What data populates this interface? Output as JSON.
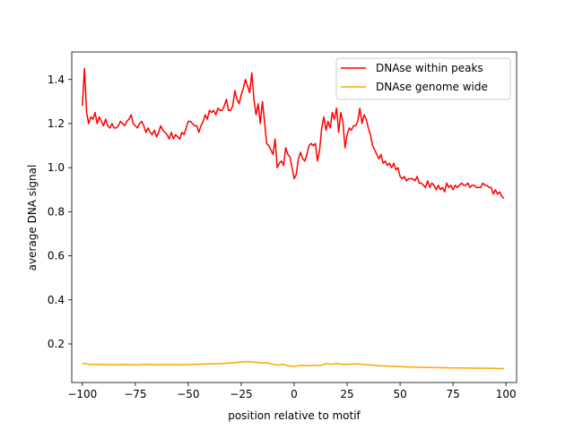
{
  "chart_data": {
    "type": "line",
    "title": "",
    "xlabel": "position relative to motif",
    "ylabel": "average DNA signal",
    "xlim": [
      -105,
      105
    ],
    "ylim": [
      0.025,
      1.525
    ],
    "xticks": [
      -100,
      -75,
      -50,
      -25,
      0,
      25,
      50,
      75,
      100
    ],
    "yticks": [
      0.2,
      0.4,
      0.6,
      0.8,
      1.0,
      1.2,
      1.4
    ],
    "xtick_labels": [
      "−100",
      "−75",
      "−50",
      "−25",
      "0",
      "25",
      "50",
      "75",
      "100"
    ],
    "ytick_labels": [
      "0.2",
      "0.4",
      "0.6",
      "0.8",
      "1.0",
      "1.2",
      "1.4"
    ],
    "grid": false,
    "legend_position": "top-right",
    "series": [
      {
        "name": "DNAse within peaks",
        "color": "#ff0000",
        "points": [
          [
            -100,
            1.28
          ],
          [
            -99,
            1.45
          ],
          [
            -98,
            1.25
          ],
          [
            -97,
            1.2
          ],
          [
            -96,
            1.23
          ],
          [
            -95,
            1.22
          ],
          [
            -94,
            1.25
          ],
          [
            -93,
            1.2
          ],
          [
            -92,
            1.23
          ],
          [
            -91,
            1.21
          ],
          [
            -90,
            1.19
          ],
          [
            -89,
            1.22
          ],
          [
            -88,
            1.19
          ],
          [
            -87,
            1.18
          ],
          [
            -86,
            1.2
          ],
          [
            -85,
            1.18
          ],
          [
            -84,
            1.18
          ],
          [
            -83,
            1.19
          ],
          [
            -82,
            1.21
          ],
          [
            -81,
            1.2
          ],
          [
            -80,
            1.19
          ],
          [
            -79,
            1.21
          ],
          [
            -78,
            1.22
          ],
          [
            -77,
            1.24
          ],
          [
            -76,
            1.2
          ],
          [
            -75,
            1.19
          ],
          [
            -74,
            1.18
          ],
          [
            -73,
            1.2
          ],
          [
            -72,
            1.21
          ],
          [
            -71,
            1.19
          ],
          [
            -70,
            1.16
          ],
          [
            -69,
            1.18
          ],
          [
            -68,
            1.16
          ],
          [
            -67,
            1.15
          ],
          [
            -66,
            1.17
          ],
          [
            -65,
            1.14
          ],
          [
            -64,
            1.16
          ],
          [
            -63,
            1.19
          ],
          [
            -62,
            1.17
          ],
          [
            -61,
            1.16
          ],
          [
            -60,
            1.15
          ],
          [
            -59,
            1.13
          ],
          [
            -58,
            1.16
          ],
          [
            -57,
            1.13
          ],
          [
            -56,
            1.15
          ],
          [
            -55,
            1.14
          ],
          [
            -54,
            1.13
          ],
          [
            -53,
            1.16
          ],
          [
            -52,
            1.15
          ],
          [
            -51,
            1.18
          ],
          [
            -50,
            1.21
          ],
          [
            -49,
            1.21
          ],
          [
            -48,
            1.2
          ],
          [
            -47,
            1.19
          ],
          [
            -46,
            1.19
          ],
          [
            -45,
            1.16
          ],
          [
            -44,
            1.19
          ],
          [
            -43,
            1.21
          ],
          [
            -42,
            1.24
          ],
          [
            -41,
            1.22
          ],
          [
            -40,
            1.26
          ],
          [
            -39,
            1.25
          ],
          [
            -38,
            1.26
          ],
          [
            -37,
            1.24
          ],
          [
            -36,
            1.27
          ],
          [
            -35,
            1.26
          ],
          [
            -34,
            1.26
          ],
          [
            -33,
            1.28
          ],
          [
            -32,
            1.31
          ],
          [
            -31,
            1.26
          ],
          [
            -30,
            1.26
          ],
          [
            -29,
            1.28
          ],
          [
            -28,
            1.35
          ],
          [
            -27,
            1.31
          ],
          [
            -26,
            1.29
          ],
          [
            -25,
            1.33
          ],
          [
            -24,
            1.36
          ],
          [
            -23,
            1.4
          ],
          [
            -22,
            1.37
          ],
          [
            -21,
            1.34
          ],
          [
            -20,
            1.43
          ],
          [
            -19,
            1.31
          ],
          [
            -18,
            1.24
          ],
          [
            -17,
            1.29
          ],
          [
            -16,
            1.2
          ],
          [
            -15,
            1.3
          ],
          [
            -14,
            1.21
          ],
          [
            -13,
            1.11
          ],
          [
            -12,
            1.1
          ],
          [
            -11,
            1.08
          ],
          [
            -10,
            1.06
          ],
          [
            -9,
            1.13
          ],
          [
            -8,
            1.0
          ],
          [
            -7,
            1.02
          ],
          [
            -6,
            1.03
          ],
          [
            -5,
            1.01
          ],
          [
            -4,
            1.09
          ],
          [
            -3,
            1.06
          ],
          [
            -2,
            1.05
          ],
          [
            -1,
            1.0
          ],
          [
            0,
            0.95
          ],
          [
            1,
            0.97
          ],
          [
            2,
            1.04
          ],
          [
            3,
            1.07
          ],
          [
            4,
            1.04
          ],
          [
            5,
            1.03
          ],
          [
            6,
            1.06
          ],
          [
            7,
            1.1
          ],
          [
            8,
            1.11
          ],
          [
            9,
            1.1
          ],
          [
            10,
            1.11
          ],
          [
            11,
            1.03
          ],
          [
            12,
            1.08
          ],
          [
            13,
            1.18
          ],
          [
            14,
            1.23
          ],
          [
            15,
            1.17
          ],
          [
            16,
            1.21
          ],
          [
            17,
            1.18
          ],
          [
            18,
            1.25
          ],
          [
            19,
            1.22
          ],
          [
            20,
            1.27
          ],
          [
            21,
            1.16
          ],
          [
            22,
            1.25
          ],
          [
            23,
            1.21
          ],
          [
            24,
            1.09
          ],
          [
            25,
            1.15
          ],
          [
            26,
            1.18
          ],
          [
            27,
            1.17
          ],
          [
            28,
            1.19
          ],
          [
            29,
            1.19
          ],
          [
            30,
            1.21
          ],
          [
            31,
            1.27
          ],
          [
            32,
            1.2
          ],
          [
            33,
            1.24
          ],
          [
            34,
            1.22
          ],
          [
            35,
            1.18
          ],
          [
            36,
            1.15
          ],
          [
            37,
            1.1
          ],
          [
            38,
            1.08
          ],
          [
            39,
            1.06
          ],
          [
            40,
            1.04
          ],
          [
            41,
            1.06
          ],
          [
            42,
            1.02
          ],
          [
            43,
            1.03
          ],
          [
            44,
            1.01
          ],
          [
            45,
            1.02
          ],
          [
            46,
            1.0
          ],
          [
            47,
            1.02
          ],
          [
            48,
            0.99
          ],
          [
            49,
            1.0
          ],
          [
            50,
            0.96
          ],
          [
            51,
            0.95
          ],
          [
            52,
            0.96
          ],
          [
            53,
            0.94
          ],
          [
            54,
            0.95
          ],
          [
            55,
            0.95
          ],
          [
            56,
            0.95
          ],
          [
            57,
            0.94
          ],
          [
            58,
            0.96
          ],
          [
            59,
            0.93
          ],
          [
            60,
            0.93
          ],
          [
            61,
            0.92
          ],
          [
            62,
            0.91
          ],
          [
            63,
            0.94
          ],
          [
            64,
            0.91
          ],
          [
            65,
            0.93
          ],
          [
            66,
            0.92
          ],
          [
            67,
            0.9
          ],
          [
            68,
            0.92
          ],
          [
            69,
            0.9
          ],
          [
            70,
            0.91
          ],
          [
            71,
            0.89
          ],
          [
            72,
            0.93
          ],
          [
            73,
            0.91
          ],
          [
            74,
            0.92
          ],
          [
            75,
            0.9
          ],
          [
            76,
            0.92
          ],
          [
            77,
            0.91
          ],
          [
            78,
            0.92
          ],
          [
            79,
            0.93
          ],
          [
            80,
            0.92
          ],
          [
            81,
            0.92
          ],
          [
            82,
            0.93
          ],
          [
            83,
            0.91
          ],
          [
            84,
            0.92
          ],
          [
            85,
            0.92
          ],
          [
            86,
            0.91
          ],
          [
            87,
            0.91
          ],
          [
            88,
            0.91
          ],
          [
            89,
            0.93
          ],
          [
            90,
            0.92
          ],
          [
            91,
            0.92
          ],
          [
            92,
            0.91
          ],
          [
            93,
            0.91
          ],
          [
            94,
            0.88
          ],
          [
            95,
            0.9
          ],
          [
            96,
            0.88
          ],
          [
            97,
            0.89
          ],
          [
            98,
            0.87
          ],
          [
            99,
            0.86
          ]
        ]
      },
      {
        "name": "DNAse genome wide",
        "color": "#ffa500",
        "points": [
          [
            -100,
            0.11
          ],
          [
            -99,
            0.112
          ],
          [
            -97,
            0.107
          ],
          [
            -95,
            0.108
          ],
          [
            -90,
            0.107
          ],
          [
            -85,
            0.106
          ],
          [
            -80,
            0.107
          ],
          [
            -75,
            0.105
          ],
          [
            -70,
            0.108
          ],
          [
            -65,
            0.106
          ],
          [
            -60,
            0.107
          ],
          [
            -55,
            0.106
          ],
          [
            -50,
            0.107
          ],
          [
            -45,
            0.108
          ],
          [
            -40,
            0.11
          ],
          [
            -35,
            0.111
          ],
          [
            -30,
            0.114
          ],
          [
            -25,
            0.118
          ],
          [
            -22,
            0.12
          ],
          [
            -20,
            0.118
          ],
          [
            -17,
            0.116
          ],
          [
            -15,
            0.114
          ],
          [
            -13,
            0.115
          ],
          [
            -10,
            0.108
          ],
          [
            -8,
            0.104
          ],
          [
            -5,
            0.107
          ],
          [
            -3,
            0.101
          ],
          [
            0,
            0.098
          ],
          [
            3,
            0.103
          ],
          [
            6,
            0.101
          ],
          [
            10,
            0.104
          ],
          [
            12,
            0.101
          ],
          [
            15,
            0.11
          ],
          [
            18,
            0.108
          ],
          [
            20,
            0.112
          ],
          [
            23,
            0.107
          ],
          [
            26,
            0.108
          ],
          [
            30,
            0.11
          ],
          [
            33,
            0.107
          ],
          [
            36,
            0.105
          ],
          [
            40,
            0.101
          ],
          [
            45,
            0.099
          ],
          [
            50,
            0.097
          ],
          [
            55,
            0.095
          ],
          [
            60,
            0.094
          ],
          [
            65,
            0.093
          ],
          [
            70,
            0.092
          ],
          [
            75,
            0.091
          ],
          [
            80,
            0.091
          ],
          [
            85,
            0.09
          ],
          [
            90,
            0.09
          ],
          [
            95,
            0.089
          ],
          [
            99,
            0.088
          ]
        ]
      }
    ]
  }
}
